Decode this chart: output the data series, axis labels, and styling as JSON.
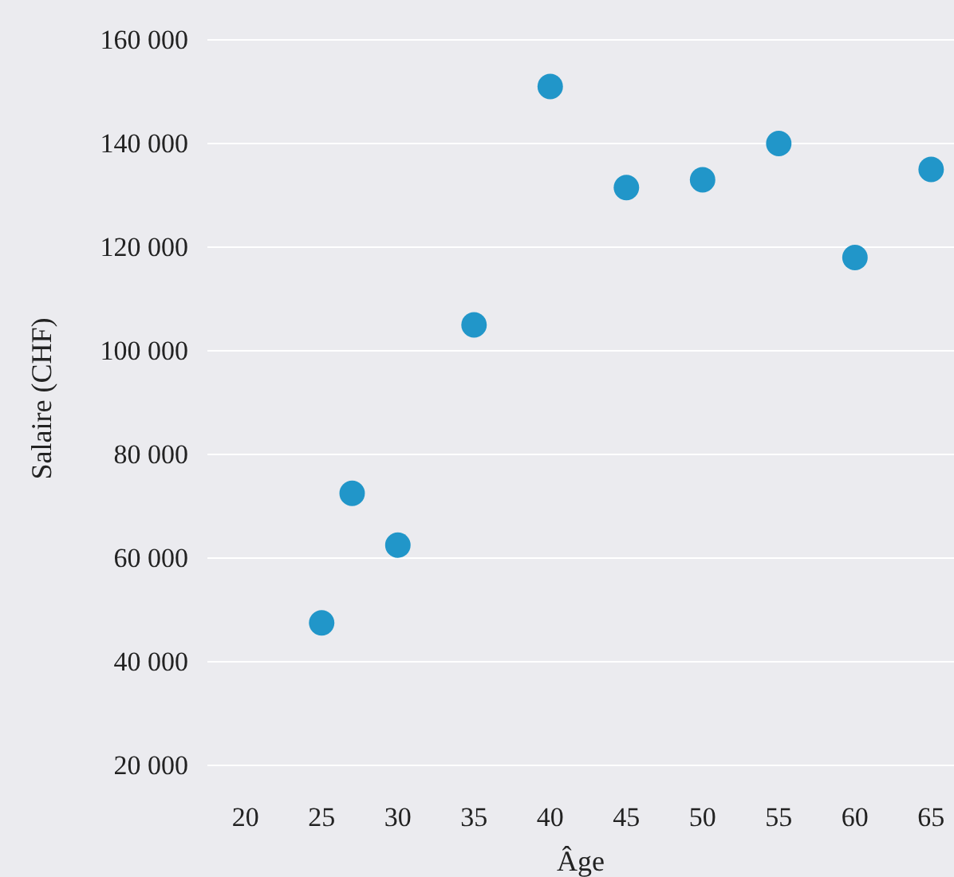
{
  "chart_data": {
    "type": "scatter",
    "xlabel": "Âge",
    "ylabel": "Salaire (CHF)",
    "x": [
      25,
      27,
      30,
      35,
      40,
      45,
      50,
      55,
      60,
      65
    ],
    "values": [
      47500,
      72500,
      62500,
      105000,
      151000,
      131500,
      133000,
      140000,
      118000,
      135000
    ],
    "color": "#2196c9",
    "marker": "circle",
    "grid": "y",
    "xlim": [
      17.5,
      66.5
    ],
    "xticks": [
      20,
      25,
      30,
      35,
      40,
      45,
      50,
      55,
      60,
      65
    ],
    "ylim": [
      20000,
      160000
    ],
    "yticks": [
      {
        "value": 20000,
        "label": "20 000"
      },
      {
        "value": 40000,
        "label": "40 000"
      },
      {
        "value": 60000,
        "label": "60 000"
      },
      {
        "value": 80000,
        "label": "80 000"
      },
      {
        "value": 100000,
        "label": "100 000"
      },
      {
        "value": 120000,
        "label": "120 000"
      },
      {
        "value": 140000,
        "label": "140 000"
      },
      {
        "value": 160000,
        "label": "160 000"
      }
    ]
  }
}
